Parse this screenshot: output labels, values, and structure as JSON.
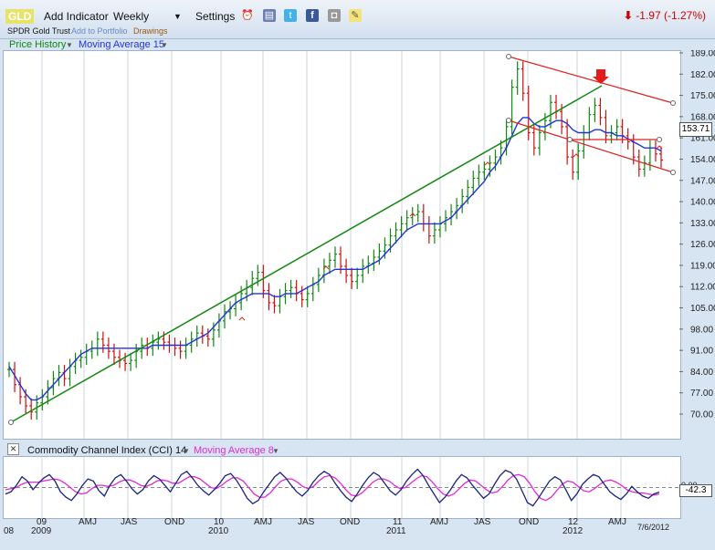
{
  "toolbar": {
    "ticker": "GLD",
    "add_indicator": "Add Indicator",
    "period": "Weekly",
    "settings": "Settings",
    "security_name": "SPDR Gold Trust",
    "add_to_portfolio": "Add to Portfolio",
    "drawings": "Drawings",
    "change": "-1.97 (-1.27%)",
    "icons": [
      "alarm-clock-icon",
      "save-icon",
      "twitter-icon",
      "facebook-icon",
      "camera-icon",
      "note-icon"
    ]
  },
  "legend": {
    "price_history": "Price History",
    "moving_average": "Moving Average 15"
  },
  "indicator_legend": {
    "cci": "Commodity Channel Index (CCI) 14",
    "moving_average": "Moving Average 8"
  },
  "price_label": "153.71",
  "cci_label": "-42.3",
  "cci_ref_label": "0.00",
  "date_label": "7/6/2012",
  "colors": {
    "price": "#118811",
    "down": "#cc1111",
    "ma": "#2233dd",
    "trend": "#118811",
    "channel": "#dd2222",
    "cci": "#1a237e",
    "cci_ma": "#e02ad6"
  },
  "chart_data": {
    "type": "line",
    "y_ticks": [
      "189.00",
      "182.00",
      "175.00",
      "168.00",
      "161.00",
      "154.00",
      "147.00",
      "140.00",
      "133.00",
      "126.00",
      "119.00",
      "112.00",
      "105.00",
      "98.00",
      "91.00",
      "84.00",
      "77.00",
      "70.00"
    ],
    "ylim": [
      66,
      190
    ],
    "x_tick_labels": [
      "08",
      "09",
      "2009",
      "AMJ",
      "JAS",
      "OND",
      "10",
      "2010",
      "AMJ",
      "JAS",
      "OND",
      "11",
      "2011",
      "AMJ",
      "JAS",
      "OND",
      "12",
      "2012",
      "AMJ"
    ],
    "series": [
      {
        "name": "Price History",
        "values": [
          85,
          80,
          76,
          73,
          71,
          74,
          76,
          79,
          82,
          84,
          82,
          86,
          88,
          89,
          91,
          92,
          95,
          93,
          91,
          89,
          88,
          87,
          88,
          91,
          93,
          92,
          94,
          95,
          94,
          93,
          92,
          91,
          93,
          95,
          97,
          96,
          95,
          98,
          101,
          104,
          105,
          107,
          110,
          112,
          115,
          117,
          111,
          107,
          106,
          109,
          111,
          112,
          110,
          108,
          110,
          113,
          116,
          119,
          121,
          123,
          119,
          116,
          114,
          116,
          119,
          120,
          122,
          124,
          126,
          129,
          131,
          133,
          135,
          136,
          137,
          133,
          129,
          131,
          133,
          135,
          137,
          139,
          142,
          145,
          148,
          150,
          151,
          153,
          155,
          158,
          165,
          178,
          184,
          176,
          163,
          158,
          163,
          167,
          173,
          170,
          165,
          155,
          150,
          157,
          163,
          169,
          172,
          168,
          162,
          163,
          165,
          162,
          160,
          155,
          151,
          153,
          158,
          156,
          154
        ]
      },
      {
        "name": "Moving Average 15",
        "values": [
          86,
          83,
          80,
          77,
          75,
          75,
          76,
          78,
          80,
          82,
          84,
          86,
          88,
          90,
          91,
          92,
          92,
          92,
          92,
          92,
          92,
          92,
          92,
          92,
          92,
          92,
          93,
          93,
          93,
          93,
          93,
          93,
          93,
          94,
          95,
          96,
          97,
          99,
          101,
          103,
          105,
          107,
          108,
          109,
          110,
          110,
          110,
          110,
          109,
          109,
          110,
          110,
          110,
          111,
          112,
          113,
          114,
          116,
          117,
          118,
          118,
          118,
          118,
          118,
          118,
          119,
          120,
          121,
          123,
          125,
          127,
          129,
          131,
          132,
          133,
          133,
          133,
          133,
          133,
          134,
          135,
          137,
          139,
          141,
          143,
          145,
          147,
          150,
          152,
          155,
          158,
          162,
          166,
          168,
          168,
          166,
          165,
          165,
          166,
          167,
          167,
          166,
          164,
          163,
          163,
          163,
          164,
          164,
          163,
          163,
          162,
          162,
          161,
          160,
          159,
          158,
          158,
          158,
          157
        ]
      }
    ],
    "cci": {
      "name": "Commodity Channel Index (CCI) 14",
      "ylim": [
        -250,
        250
      ],
      "values": [
        -60,
        -40,
        20,
        100,
        60,
        -20,
        40,
        90,
        120,
        60,
        -40,
        -90,
        -120,
        -60,
        20,
        80,
        60,
        -30,
        -80,
        20,
        90,
        120,
        60,
        -10,
        -60,
        -20,
        60,
        110,
        80,
        20,
        -40,
        40,
        120,
        150,
        90,
        20,
        -30,
        -70,
        -20,
        40,
        110,
        130,
        70,
        -10,
        -100,
        -150,
        -120,
        -40,
        30,
        100,
        140,
        90,
        20,
        -40,
        -80,
        -30,
        50,
        110,
        150,
        120,
        40,
        -30,
        -90,
        -130,
        -60,
        20,
        90,
        140,
        110,
        40,
        -30,
        -70,
        -20,
        60,
        120,
        170,
        110,
        20,
        -60,
        -140,
        -90,
        -20,
        60,
        120,
        90,
        20,
        -40,
        -100,
        -60,
        30,
        110,
        160,
        140,
        80,
        -30,
        -140,
        -170,
        -100,
        -20,
        60,
        100,
        70,
        -20,
        -120,
        -60,
        30,
        80,
        120,
        100,
        30,
        -40,
        -80,
        -110,
        -60,
        10,
        -40,
        -80,
        -100,
        -60,
        -42
      ],
      "ma_values": [
        -20,
        -10,
        0,
        30,
        50,
        50,
        50,
        60,
        70,
        80,
        70,
        40,
        0,
        -40,
        -60,
        -50,
        -10,
        20,
        20,
        10,
        20,
        50,
        70,
        70,
        50,
        20,
        10,
        30,
        60,
        70,
        60,
        40,
        40,
        70,
        100,
        100,
        80,
        40,
        0,
        -10,
        20,
        60,
        90,
        90,
        60,
        0,
        -60,
        -90,
        -90,
        -50,
        10,
        60,
        80,
        80,
        50,
        10,
        -10,
        10,
        60,
        100,
        110,
        90,
        40,
        -20,
        -70,
        -80,
        -50,
        0,
        50,
        80,
        80,
        60,
        20,
        -10,
        0,
        40,
        80,
        110,
        100,
        50,
        -10,
        -60,
        -80,
        -60,
        -10,
        40,
        70,
        60,
        20,
        -20,
        -50,
        -40,
        10,
        70,
        110,
        120,
        100,
        40,
        -40,
        -100,
        -120,
        -90,
        -30,
        30,
        60,
        50,
        10,
        -30,
        -40,
        -10,
        30,
        60,
        70,
        50,
        20,
        -20,
        -40,
        -50,
        -50,
        -60,
        -70,
        -60
      ]
    }
  }
}
